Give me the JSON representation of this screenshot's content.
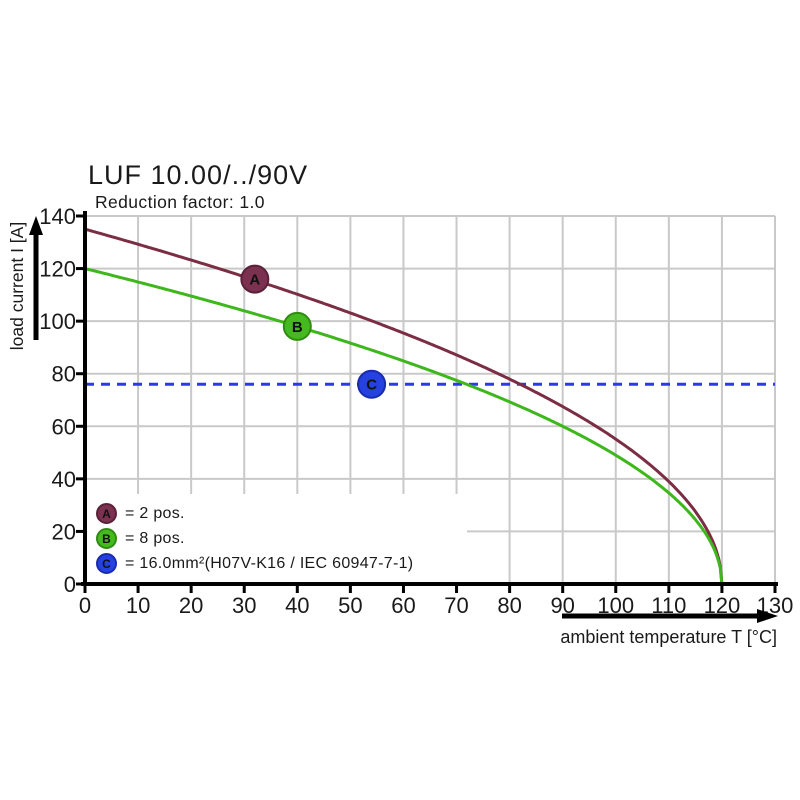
{
  "header": {
    "title": "LUF 10.00/../90V",
    "subtitle": "Reduction factor: 1.0"
  },
  "chart_data": {
    "type": "line",
    "title": "LUF 10.00/../90V",
    "subtitle": "Reduction factor: 1.0",
    "xlabel": "ambient temperature T [°C]",
    "ylabel": "load current I [A]",
    "xlim": [
      0,
      130
    ],
    "ylim": [
      0,
      140
    ],
    "x_ticks": [
      0,
      10,
      20,
      30,
      40,
      50,
      60,
      70,
      80,
      90,
      100,
      110,
      120,
      130
    ],
    "y_ticks": [
      0,
      20,
      40,
      60,
      80,
      100,
      120,
      140
    ],
    "grid": true,
    "legend_position": "inside-bottom-left",
    "colors": {
      "grid": "#c9c9c9",
      "axis": "#000000",
      "text": "#1a1a1a"
    },
    "series": [
      {
        "id": "2pos",
        "letter": "A",
        "legend_label": "= 2 pos.",
        "color": "#7b2d44",
        "marker_fill": "#7c3150",
        "marker_stroke": "#5a2138",
        "formula": "I = I0*sqrt(1 - T/Tmax)",
        "I0": 135,
        "Tmax": 120,
        "marker": {
          "T": 32,
          "I": 116
        },
        "samples": {
          "T": [
            0,
            10,
            20,
            30,
            40,
            50,
            60,
            70,
            80,
            90,
            100,
            110,
            115,
            118,
            120
          ],
          "I": [
            135,
            129.2,
            123.2,
            116.9,
            110.2,
            103.1,
            95.5,
            87.1,
            77.9,
            67.5,
            55.1,
            39.0,
            27.6,
            17.4,
            0
          ]
        }
      },
      {
        "id": "8pos",
        "letter": "B",
        "legend_label": "= 8 pos.",
        "color": "#3db71b",
        "marker_fill": "#45ba20",
        "marker_stroke": "#2f8c10",
        "formula": "I = I0*sqrt(1 - T/Tmax)",
        "I0": 120,
        "Tmax": 120,
        "marker": {
          "T": 40,
          "I": 98
        },
        "samples": {
          "T": [
            0,
            10,
            20,
            30,
            40,
            50,
            60,
            70,
            80,
            90,
            100,
            110,
            115,
            118,
            120
          ],
          "I": [
            120,
            114.9,
            109.5,
            103.9,
            98.0,
            91.7,
            84.9,
            77.5,
            69.3,
            60.0,
            49.0,
            34.6,
            24.5,
            15.5,
            0
          ]
        }
      }
    ],
    "reference_line": {
      "id": "16mm2",
      "letter": "C",
      "legend_label": "= 16.0mm²(H07V-K16 / IEC 60947-7-1)",
      "y": 76,
      "style": "dashed",
      "color": "#2b3be0",
      "marker_fill": "#2542e0",
      "marker_stroke": "#1a2cae",
      "marker": {
        "T": 54,
        "I": 76
      }
    }
  }
}
